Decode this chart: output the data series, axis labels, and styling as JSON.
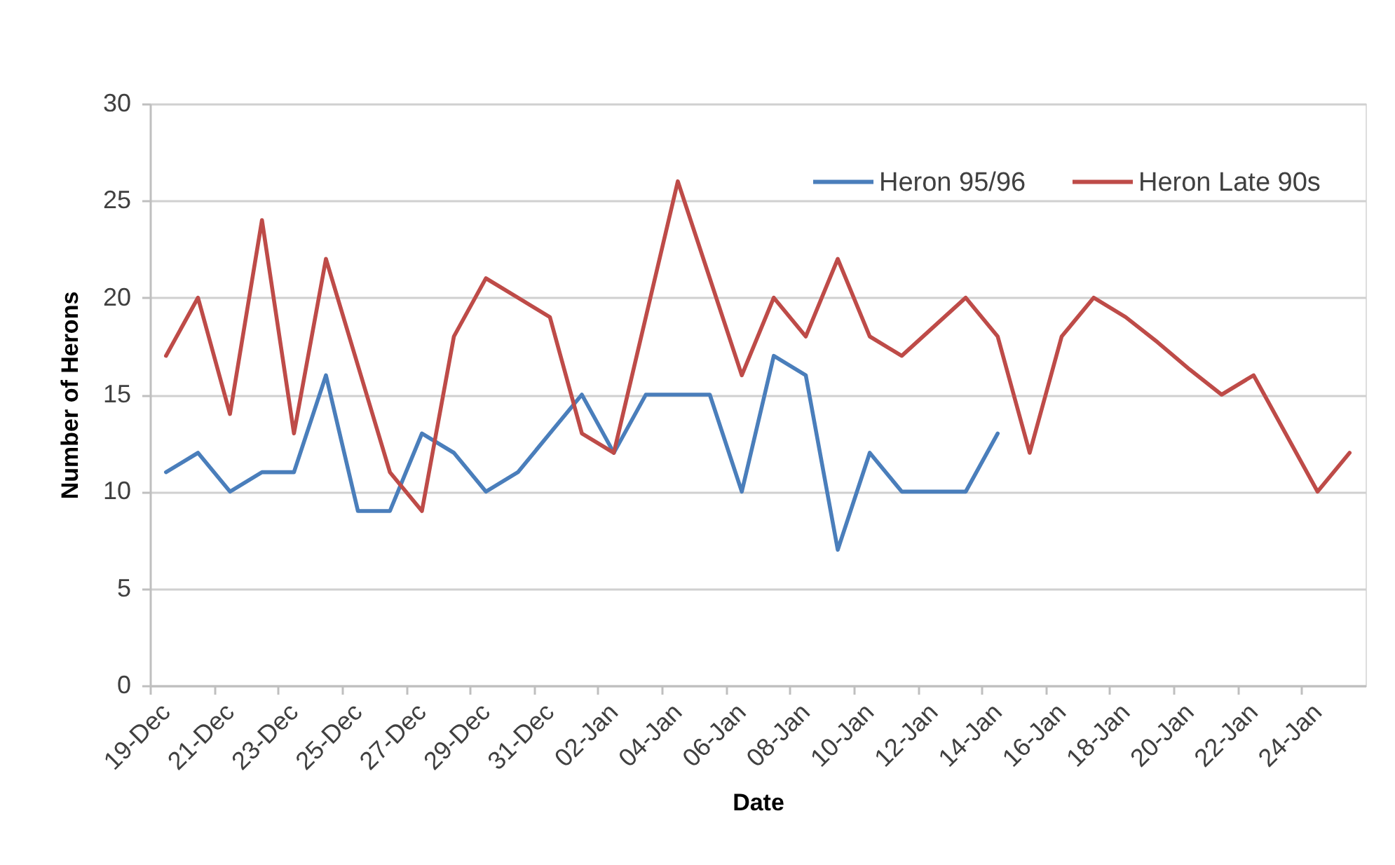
{
  "chart_data": {
    "type": "line",
    "xlabel": "Date",
    "ylabel": "Number of Herons",
    "categories": [
      "19-Dec",
      null,
      "21-Dec",
      null,
      "23-Dec",
      null,
      "25-Dec",
      null,
      "27-Dec",
      null,
      "29-Dec",
      null,
      "31-Dec",
      null,
      "02-Jan",
      null,
      "04-Jan",
      null,
      "06-Jan",
      null,
      "08-Jan",
      null,
      "10-Jan",
      null,
      "12-Jan",
      null,
      "14-Jan",
      null,
      "16-Jan",
      null,
      "18-Jan",
      null,
      "20-Jan",
      null,
      "22-Jan",
      null,
      "24-Jan",
      null
    ],
    "series": [
      {
        "name": "Heron 95/96",
        "color": "#4a7ebb",
        "values": [
          11,
          12,
          10,
          11,
          11,
          16,
          9,
          9,
          13,
          12,
          10,
          11,
          13,
          15,
          12,
          15,
          15,
          15,
          10,
          17,
          16,
          7,
          12,
          10,
          10,
          10,
          13,
          null,
          null,
          null,
          null,
          null,
          null,
          null,
          null,
          null,
          null,
          null
        ]
      },
      {
        "name": "Heron Late 90s",
        "color": "#be4b48",
        "values": [
          17,
          20,
          14,
          24,
          13,
          22,
          16.5,
          11,
          9,
          18,
          21,
          20,
          19,
          13,
          12,
          19,
          26,
          21,
          16,
          20,
          18,
          22,
          18,
          17,
          18.5,
          20,
          18,
          12,
          18,
          20,
          19,
          17.7,
          16.3,
          15,
          16,
          13,
          10,
          12
        ]
      }
    ],
    "ylim": [
      0,
      30
    ],
    "yticks": [
      0,
      5,
      10,
      15,
      20,
      25,
      30
    ],
    "grid": "y",
    "legend": "top right",
    "marker": "none",
    "line_style": "solid"
  }
}
